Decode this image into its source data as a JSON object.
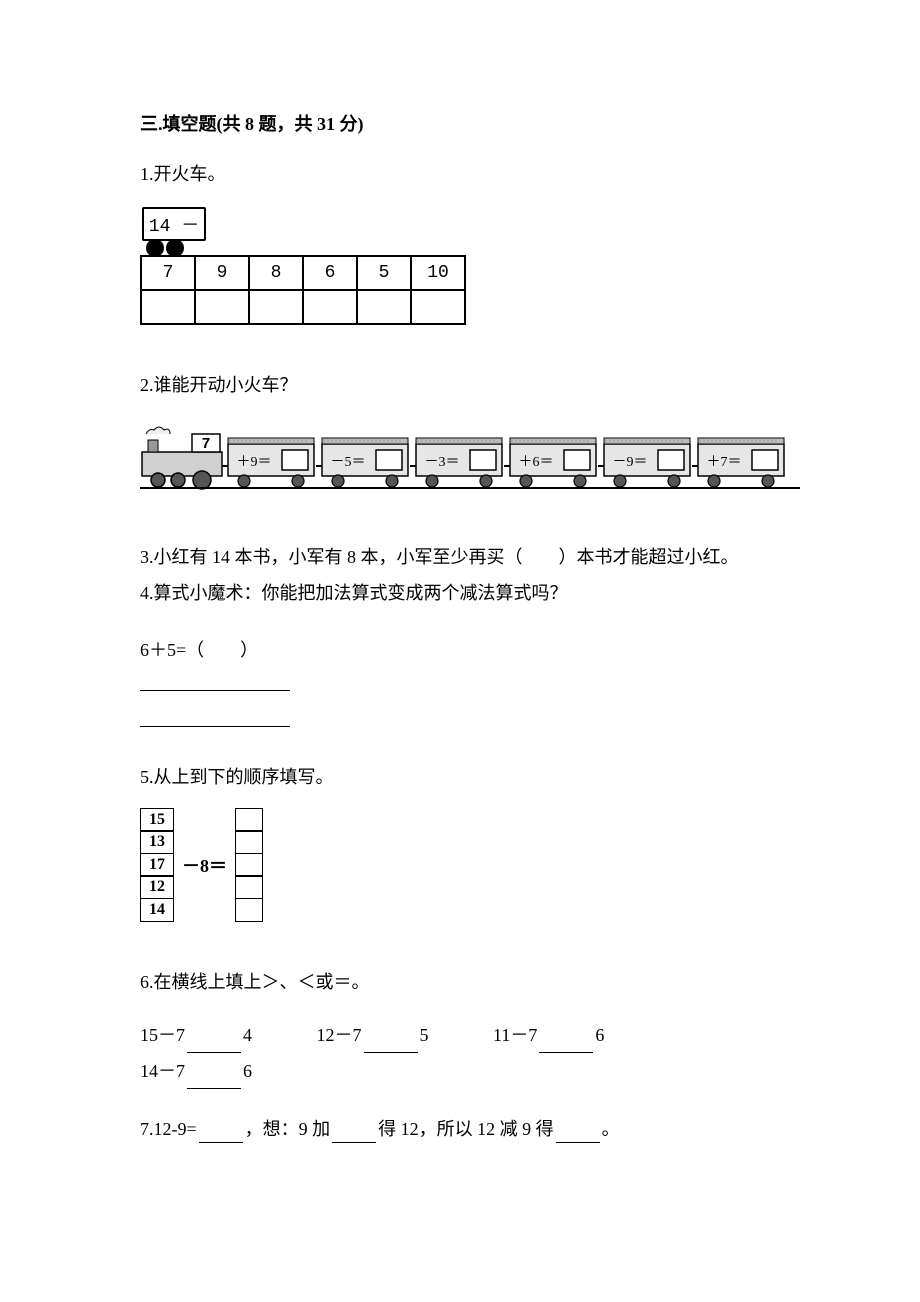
{
  "section": {
    "title": "三.填空题(共 8 题，共 31 分)"
  },
  "q1": {
    "label": "1.开火车。",
    "head": "14 －",
    "cells": [
      "7",
      "9",
      "8",
      "6",
      "5",
      "10"
    ]
  },
  "q2": {
    "label": "2.谁能开动小火车？",
    "start": "7",
    "ops": [
      "＋9＝",
      "－5＝",
      "－3＝",
      "＋6＝",
      "－9＝",
      "＋7＝"
    ]
  },
  "q3": {
    "text": "3.小红有 14 本书，小军有 8 本，小军至少再买（　　）本书才能超过小红。"
  },
  "q4": {
    "label": "4.算式小魔术：你能把加法算式变成两个减法算式吗？",
    "expr": "6＋5=（　　）"
  },
  "q5": {
    "label": "5.从上到下的顺序填写。",
    "left": [
      "15",
      "13",
      "17",
      "12",
      "14"
    ],
    "op": "－8＝"
  },
  "q6": {
    "label": "6.在横线上填上＞、＜或＝。",
    "items": [
      {
        "lhs": "15－7",
        "rhs": "4"
      },
      {
        "lhs": "12－7",
        "rhs": "5"
      },
      {
        "lhs": "11－7",
        "rhs": "6"
      },
      {
        "lhs": "14－7",
        "rhs": "6"
      }
    ]
  },
  "q7": {
    "p1": "7.12-9=",
    "p2": "，想：9 加",
    "p3": "得 12，所以 12 减 9 得",
    "p4": "。"
  }
}
